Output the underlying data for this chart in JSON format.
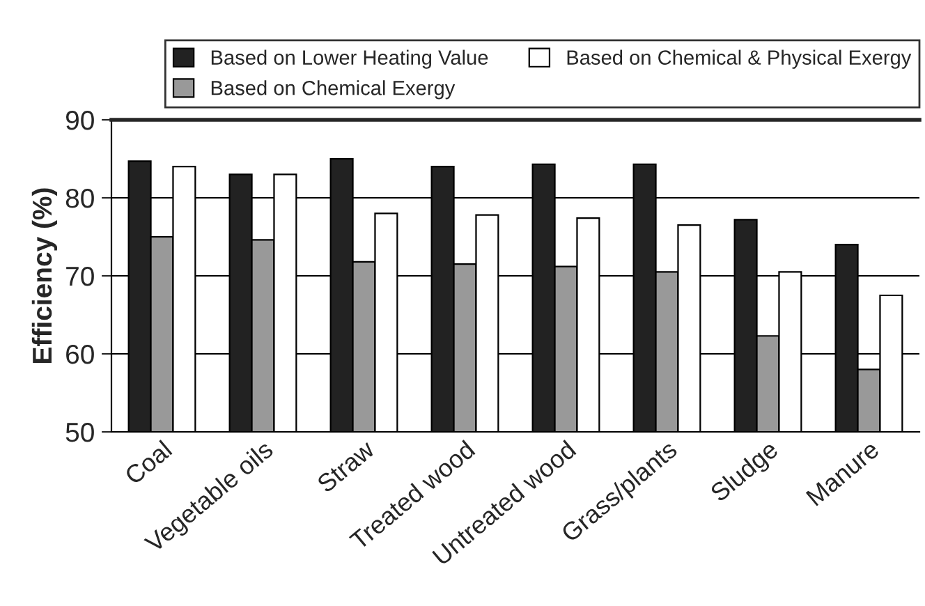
{
  "chart_data": {
    "type": "bar",
    "ylabel": "Efficiency (%)",
    "categories": [
      "Coal",
      "Vegetable oils",
      "Straw",
      "Treated wood",
      "Untreated wood",
      "Grass/plants",
      "Sludge",
      "Manure"
    ],
    "series": [
      {
        "name": "Based on Lower Heating Value",
        "color": "#222222",
        "values": [
          84.7,
          83,
          85,
          84,
          84.3,
          84.3,
          77.2,
          74
        ]
      },
      {
        "name": "Based on Chemical Exergy",
        "color": "#999999",
        "values": [
          75,
          74.6,
          71.8,
          71.5,
          71.2,
          70.5,
          62.3,
          58
        ]
      },
      {
        "name": "Based on Chemical & Physical Exergy",
        "color": "#ffffff",
        "values": [
          84,
          83,
          78,
          77.8,
          77.4,
          76.5,
          70.5,
          67.5
        ]
      }
    ],
    "ylim": [
      50,
      90
    ],
    "yticks": [
      50,
      60,
      70,
      80,
      90
    ],
    "grid": "y",
    "legend": "top"
  }
}
